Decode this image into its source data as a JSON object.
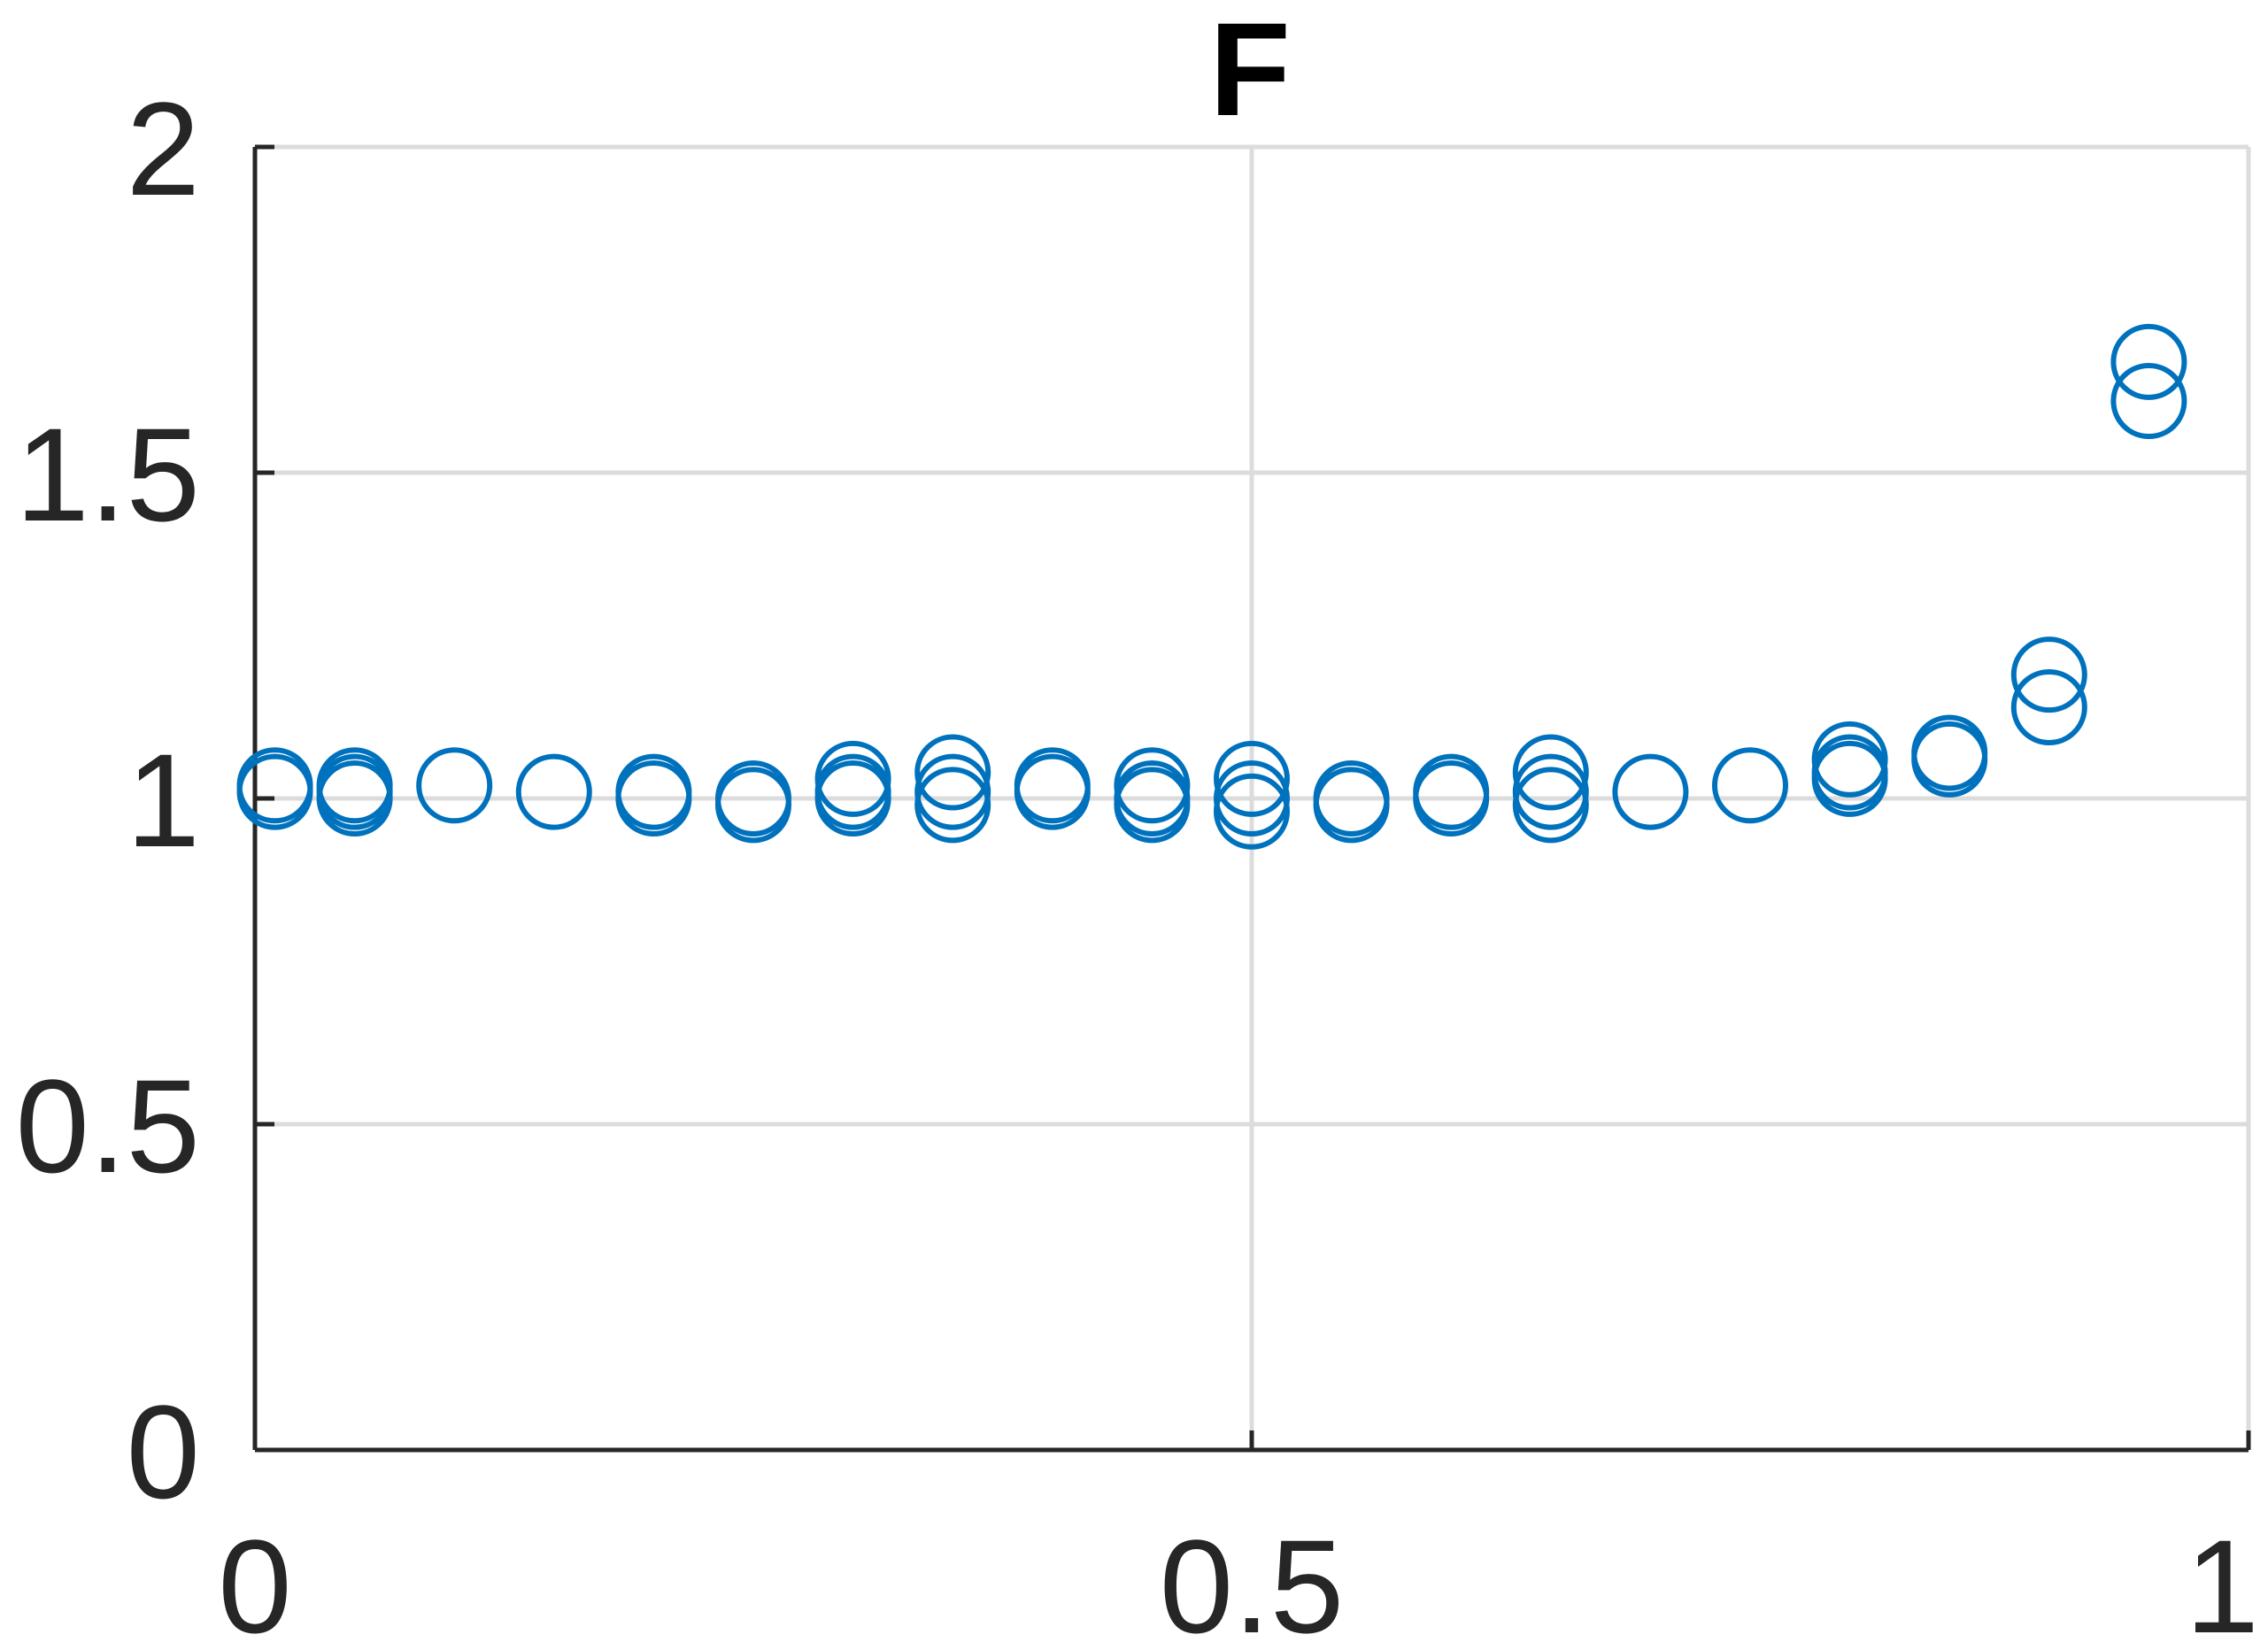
{
  "chart_data": {
    "type": "scatter",
    "title": "F",
    "xlabel": "",
    "ylabel": "",
    "xlim": [
      0,
      1
    ],
    "ylim": [
      0,
      2
    ],
    "xticks": [
      0,
      0.5,
      1
    ],
    "xtick_labels": [
      "0",
      "0.5",
      "1"
    ],
    "yticks": [
      0,
      0.5,
      1,
      1.5,
      2
    ],
    "ytick_labels": [
      "0",
      "0.5",
      "1",
      "1.5",
      "2"
    ],
    "grid": true,
    "marker": "open-circle",
    "color": "#0072BD",
    "series": [
      {
        "points": [
          [
            0.01,
            1.02
          ],
          [
            0.01,
            1.01
          ],
          [
            0.05,
            1.02
          ],
          [
            0.05,
            1.01
          ],
          [
            0.05,
            1.0
          ],
          [
            0.1,
            1.02
          ],
          [
            0.15,
            1.01
          ],
          [
            0.2,
            1.01
          ],
          [
            0.2,
            1.0
          ],
          [
            0.25,
            1.0
          ],
          [
            0.25,
            0.99
          ],
          [
            0.3,
            1.03
          ],
          [
            0.3,
            1.01
          ],
          [
            0.3,
            1.0
          ],
          [
            0.35,
            1.04
          ],
          [
            0.35,
            1.01
          ],
          [
            0.35,
            0.99
          ],
          [
            0.4,
            1.02
          ],
          [
            0.4,
            1.01
          ],
          [
            0.45,
            1.02
          ],
          [
            0.45,
            1.0
          ],
          [
            0.45,
            0.99
          ],
          [
            0.5,
            1.03
          ],
          [
            0.5,
            1.0
          ],
          [
            0.5,
            0.98
          ],
          [
            0.55,
            1.0
          ],
          [
            0.55,
            0.99
          ],
          [
            0.6,
            1.01
          ],
          [
            0.6,
            1.0
          ],
          [
            0.65,
            1.04
          ],
          [
            0.65,
            1.01
          ],
          [
            0.65,
            0.99
          ],
          [
            0.7,
            1.01
          ],
          [
            0.75,
            1.02
          ],
          [
            0.8,
            1.06
          ],
          [
            0.8,
            1.04
          ],
          [
            0.8,
            1.03
          ],
          [
            0.85,
            1.07
          ],
          [
            0.85,
            1.06
          ],
          [
            0.9,
            1.19
          ],
          [
            0.9,
            1.14
          ],
          [
            0.95,
            1.67
          ],
          [
            0.95,
            1.61
          ]
        ]
      }
    ]
  }
}
